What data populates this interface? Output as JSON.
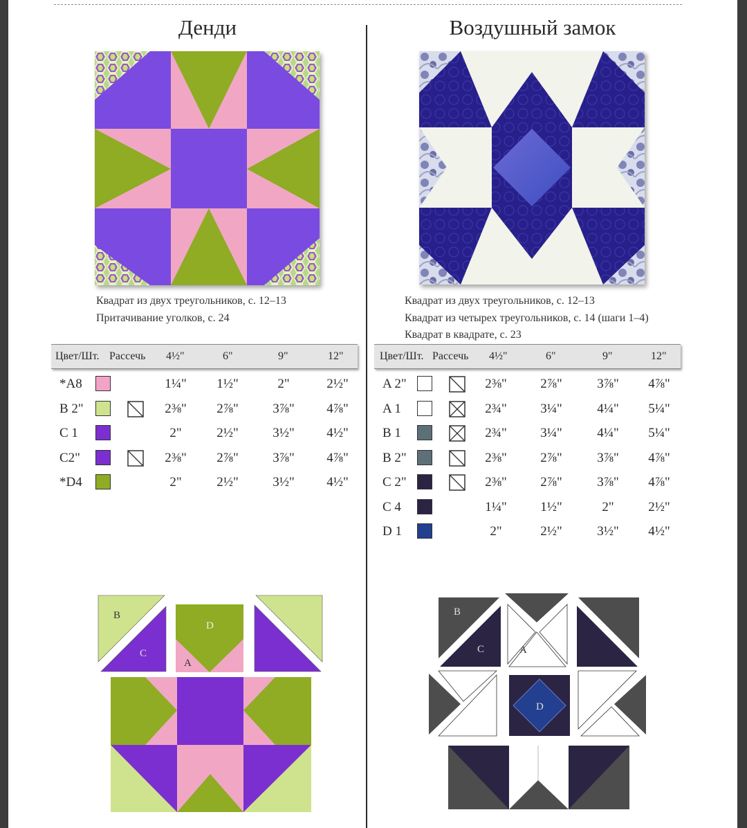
{
  "blocks": [
    {
      "title": "Денди",
      "references": [
        "Квадрат из двух треугольников, с. 12–13",
        "Притачивание уголков, с. 24"
      ],
      "table": {
        "headers": [
          "Цвет/Шт.",
          "Рассечь",
          "4½\"",
          "6\"",
          "9\"",
          "12\""
        ],
        "rows": [
          {
            "label": "*A8",
            "color": "#f4a3c8",
            "cut": "",
            "values": [
              "1¼\"",
              "1½\"",
              "2\"",
              "2½\""
            ]
          },
          {
            "label": "B 2\"",
            "color": "#cfe38f",
            "cut": "half",
            "values": [
              "2⅜\"",
              "2⅞\"",
              "3⅞\"",
              "4⅞\""
            ]
          },
          {
            "label": "C 1",
            "color": "#7b2fd1",
            "cut": "",
            "values": [
              "2\"",
              "2½\"",
              "3½\"",
              "4½\""
            ]
          },
          {
            "label": "C2\"",
            "color": "#7b2fd1",
            "cut": "half",
            "values": [
              "2⅜\"",
              "2⅞\"",
              "3⅞\"",
              "4⅞\""
            ]
          },
          {
            "label": "*D4",
            "color": "#8fac24",
            "cut": "",
            "values": [
              "2\"",
              "2½\"",
              "3½\"",
              "4½\""
            ]
          }
        ]
      },
      "diagram_labels": [
        "B",
        "C",
        "D",
        "A"
      ]
    },
    {
      "title": "Воздушный замок",
      "references": [
        "Квадрат из двух треугольников, с. 12–13",
        "Квадрат из четырех треугольников, с. 14 (шаги 1–4)",
        "Квадрат в квадрате, с. 23"
      ],
      "table": {
        "headers": [
          "Цвет/Шт.",
          "Рассечь",
          "4½\"",
          "6\"",
          "9\"",
          "12\""
        ],
        "rows": [
          {
            "label": "A 2\"",
            "color": "#ffffff",
            "cut": "half",
            "values": [
              "2⅜\"",
              "2⅞\"",
              "3⅞\"",
              "4⅞\""
            ]
          },
          {
            "label": "A 1",
            "color": "#ffffff",
            "cut": "quarter",
            "values": [
              "2¾\"",
              "3¼\"",
              "4¼\"",
              "5¼\""
            ]
          },
          {
            "label": "B 1",
            "color": "#5e7077",
            "cut": "quarter",
            "values": [
              "2¾\"",
              "3¼\"",
              "4¼\"",
              "5¼\""
            ]
          },
          {
            "label": "B 2\"",
            "color": "#5e7077",
            "cut": "half",
            "values": [
              "2⅜\"",
              "2⅞\"",
              "3⅞\"",
              "4⅞\""
            ]
          },
          {
            "label": "C 2\"",
            "color": "#2b2443",
            "cut": "half",
            "values": [
              "2⅜\"",
              "2⅞\"",
              "3⅞\"",
              "4⅞\""
            ]
          },
          {
            "label": "C 4",
            "color": "#2b2443",
            "cut": "",
            "values": [
              "1¼\"",
              "1½\"",
              "2\"",
              "2½\""
            ]
          },
          {
            "label": "D 1",
            "color": "#233f8f",
            "cut": "",
            "values": [
              "2\"",
              "2½\"",
              "3½\"",
              "4½\""
            ]
          }
        ]
      },
      "diagram_labels": [
        "B",
        "C",
        "A",
        "D"
      ]
    }
  ],
  "colors": {
    "dandy_green": "#8fac24",
    "dandy_purple": "#7b2fd1",
    "dandy_pink": "#f4a3c8",
    "dandy_lightgreen": "#cfe38f",
    "castle_navy": "#2b2443",
    "castle_grey": "#4d4d4d",
    "castle_blue": "#233f8f"
  }
}
